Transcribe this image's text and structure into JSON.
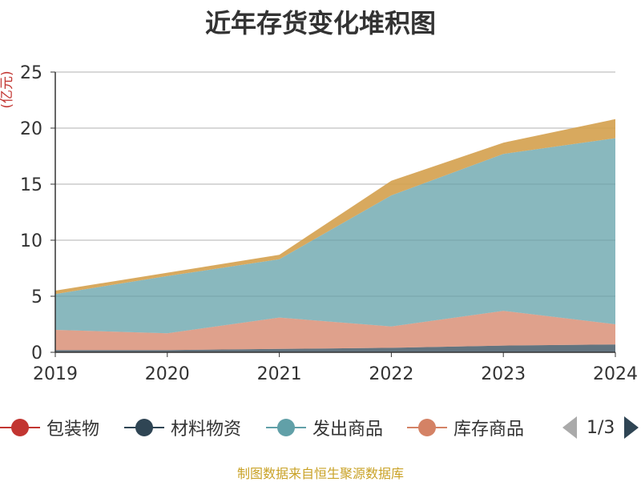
{
  "title": "近年存货变化堆积图",
  "unit_label": "(亿元)",
  "source_note": "制图数据来自恒生聚源数据库",
  "legend_pager": "1/3",
  "colors": {
    "包装物": "#c23531",
    "材料物资": "#2f4554",
    "发出商品": "#61a0a8",
    "库存商品": "#d48265",
    "top_layer": "#d4a04c",
    "grid": "#cccccc",
    "axis": "#333333",
    "pager_active": "#2f4554",
    "pager_inactive": "#aaaaaa"
  },
  "chart_data": {
    "type": "area",
    "stacked": true,
    "categories": [
      "2019",
      "2020",
      "2021",
      "2022",
      "2023",
      "2024"
    ],
    "ylim": [
      0,
      25
    ],
    "yticks": [
      0,
      5,
      10,
      15,
      20,
      25
    ],
    "grid": true,
    "legend_position": "bottom",
    "legend_visible": [
      "包装物",
      "材料物资",
      "发出商品",
      "库存商品"
    ],
    "series": [
      {
        "name": "包装物",
        "values": [
          0.0,
          0.0,
          0.0,
          0.0,
          0.0,
          0.0
        ]
      },
      {
        "name": "材料物资",
        "values": [
          0.2,
          0.2,
          0.3,
          0.4,
          0.6,
          0.7
        ]
      },
      {
        "name": "库存商品",
        "values": [
          1.8,
          1.5,
          2.8,
          1.9,
          3.1,
          1.8
        ]
      },
      {
        "name": "发出商品",
        "values": [
          3.2,
          5.1,
          5.2,
          11.7,
          14.0,
          16.6
        ]
      },
      {
        "name": "",
        "values": [
          0.3,
          0.3,
          0.4,
          1.3,
          1.0,
          1.7
        ]
      }
    ]
  }
}
